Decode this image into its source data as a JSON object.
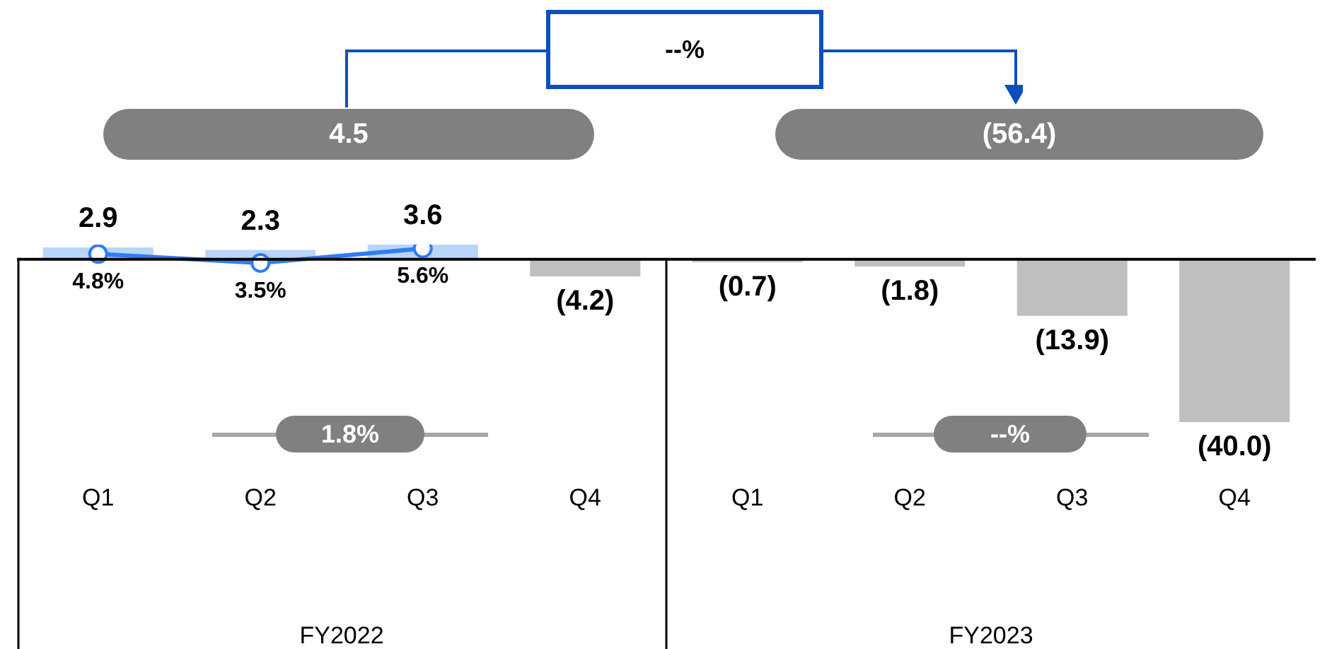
{
  "chart_data": {
    "type": "bar",
    "categories": [
      "Q1",
      "Q2",
      "Q3",
      "Q4",
      "Q1",
      "Q2",
      "Q3",
      "Q4"
    ],
    "tick_labels": "x",
    "series": [
      {
        "colors": [
          "#b9d5fa",
          "#b9d5fa",
          "#b9d5fa",
          "#bfbfbf",
          "#bfbfbf",
          "#bfbfbf",
          "#bfbfbf",
          "#bfbfbf"
        ],
        "values": [
          2.9,
          2.3,
          3.6,
          -4.2,
          -0.7,
          -1.8,
          -13.9,
          -40.0
        ],
        "value_labels": [
          "2.9",
          "2.3",
          "3.6",
          "(4.2)",
          "(0.7)",
          "(1.8)",
          "(13.9)",
          "(40.0)"
        ]
      },
      {
        "type": "line",
        "axis": "y2",
        "color": "#2f7cf6",
        "marker": "circle",
        "values": [
          4.8,
          3.5,
          5.6,
          null,
          null,
          null,
          null,
          null
        ],
        "value_labels": [
          "4.8%",
          "3.5%",
          "5.6%",
          null,
          null,
          null,
          null,
          null
        ]
      }
    ],
    "annotations": [
      "4.5",
      "(56.4)",
      "--%",
      "1.8%",
      "--%",
      "FY2022",
      "FY2023"
    ]
  }
}
